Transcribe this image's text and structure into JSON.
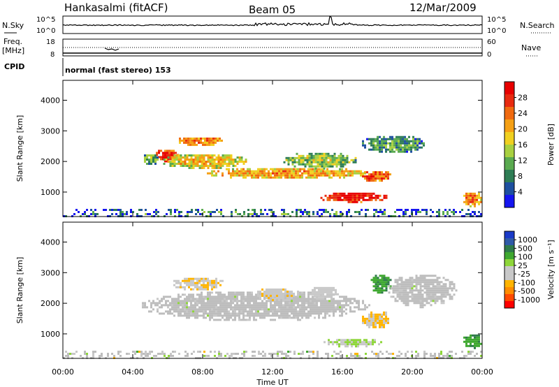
{
  "header": {
    "station": "Hankasalmi (fitACF)",
    "beam": "Beam 05",
    "date": "12/Mar/2009"
  },
  "summary": {
    "nsky_label": "N.Sky",
    "nsky_ticks": [
      "10^5",
      "10^0"
    ],
    "nsearch_label": "N.Search",
    "nsearch_ticks": [
      "10^5",
      "10^0"
    ],
    "freq_label": "Freq.",
    "freq_unit": "[MHz]",
    "freq_ticks": [
      "18",
      "8"
    ],
    "nave_label": "Nave",
    "nave_ticks": [
      "60",
      "0"
    ],
    "cpid_label": "CPID",
    "cpid_text": "normal (fast stereo) 153"
  },
  "colors": {
    "power_scale": [
      "#1515f0",
      "#1e50a0",
      "#2e7d55",
      "#5aaa50",
      "#a8d040",
      "#f0d020",
      "#f5a015",
      "#f06a10",
      "#e82a10",
      "#e80000"
    ],
    "velocity_scale": [
      "#ff0000",
      "#ff4a00",
      "#ff8c00",
      "#ffb400",
      "#c8c8c8",
      "#c8c8c8",
      "#8ed63a",
      "#3fa830",
      "#2f7a4a",
      "#2f5aa8",
      "#1a3ac8"
    ],
    "ground_scatter": "#bdbdbd"
  },
  "chart_data": [
    {
      "type": "heatmap",
      "name": "power",
      "xlabel": "Time UT",
      "ylabel": "Slant Range [km]",
      "x_ticks": [
        "00:00",
        "04:00",
        "08:00",
        "12:00",
        "16:00",
        "20:00",
        "00:00"
      ],
      "xlim_hours": [
        0,
        24
      ],
      "y_ticks": [
        1000,
        2000,
        3000,
        4000
      ],
      "ylim_km": [
        200,
        4650
      ],
      "colorbar": {
        "label": "Power [dB]",
        "ticks": [
          "4",
          "8",
          "12",
          "16",
          "20",
          "24",
          "28"
        ],
        "range": [
          0,
          30
        ]
      },
      "echo_regions": [
        {
          "t0": 6.4,
          "t1": 9.2,
          "r0": 2550,
          "r1": 2850,
          "level": 22
        },
        {
          "t0": 5.2,
          "t1": 6.6,
          "r0": 2000,
          "r1": 2450,
          "level": 27
        },
        {
          "t0": 5.5,
          "t1": 10.5,
          "r0": 1800,
          "r1": 2300,
          "level": 18
        },
        {
          "t0": 8.0,
          "t1": 17.5,
          "r0": 1450,
          "r1": 1850,
          "level": 20
        },
        {
          "t0": 12.5,
          "t1": 16.8,
          "r0": 1800,
          "r1": 2350,
          "level": 14
        },
        {
          "t0": 14.5,
          "t1": 18.6,
          "r0": 700,
          "r1": 1050,
          "level": 29
        },
        {
          "t0": 17.0,
          "t1": 18.8,
          "r0": 1350,
          "r1": 1750,
          "level": 24
        },
        {
          "t0": 17.0,
          "t1": 20.8,
          "r0": 2300,
          "r1": 2900,
          "level": 10
        },
        {
          "t0": 4.4,
          "t1": 5.4,
          "r0": 1900,
          "r1": 2300,
          "level": 12
        },
        {
          "t0": 22.8,
          "t1": 24.0,
          "r0": 550,
          "r1": 1050,
          "level": 22
        },
        {
          "t0": 0.0,
          "t1": 24.0,
          "r0": 200,
          "r1": 450,
          "level": 8
        }
      ]
    },
    {
      "type": "heatmap",
      "name": "velocity",
      "xlabel": "Time UT",
      "ylabel": "Slant Range [km]",
      "x_ticks": [
        "00:00",
        "04:00",
        "08:00",
        "12:00",
        "16:00",
        "20:00",
        "00:00"
      ],
      "xlim_hours": [
        0,
        24
      ],
      "y_ticks": [
        1000,
        2000,
        3000,
        4000
      ],
      "ylim_km": [
        200,
        4650
      ],
      "colorbar": {
        "label": "Velocity [m s⁻¹]",
        "ticks": [
          "1000",
          "500",
          "100",
          "25",
          "-25",
          "-100",
          "-500",
          "-1000"
        ],
        "range": [
          -1250,
          1250
        ]
      },
      "echo_regions": [
        {
          "t0": 4.4,
          "t1": 17.5,
          "r0": 1450,
          "r1": 2450,
          "level": 0
        },
        {
          "t0": 6.2,
          "t1": 9.2,
          "r0": 2450,
          "r1": 2900,
          "level": -300
        },
        {
          "t0": 11.0,
          "t1": 13.5,
          "r0": 2100,
          "r1": 2550,
          "level": -250
        },
        {
          "t0": 14.0,
          "t1": 15.8,
          "r0": 2150,
          "r1": 2600,
          "level": -200
        },
        {
          "t0": 17.0,
          "t1": 18.8,
          "r0": 1200,
          "r1": 1800,
          "level": -350
        },
        {
          "t0": 14.8,
          "t1": 18.2,
          "r0": 600,
          "r1": 900,
          "level": 100
        },
        {
          "t0": 17.5,
          "t1": 18.8,
          "r0": 2350,
          "r1": 3000,
          "level": 500
        },
        {
          "t0": 18.5,
          "t1": 22.5,
          "r0": 1900,
          "r1": 3000,
          "level": 0
        },
        {
          "t0": 22.8,
          "t1": 24.0,
          "r0": 550,
          "r1": 1050,
          "level": 500
        },
        {
          "t0": 0.0,
          "t1": 24.0,
          "r0": 200,
          "r1": 450,
          "level": 0
        }
      ]
    }
  ]
}
